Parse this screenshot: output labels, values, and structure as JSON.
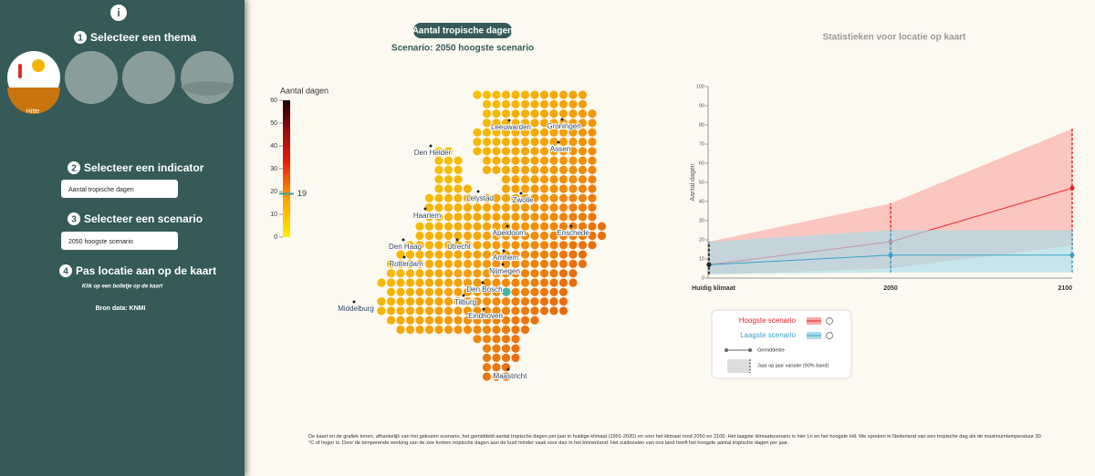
{
  "sidebar": {
    "info": "i",
    "step1_num": "1",
    "step1": "Selecteer een thema",
    "theme_label": "Hitte",
    "step2_num": "2",
    "step2": "Selecteer een indicator",
    "indicator": "Aantal tropische dagen",
    "step3_num": "3",
    "step3": "Selecteer een scenario",
    "scenario": "2050 hoogste scenario",
    "step4_num": "4",
    "step4": "Pas locatie aan op de kaart",
    "hint": "Klik op een bolletje op de kaart",
    "source": "Bron data: KNMI"
  },
  "map": {
    "title": "Aantal tropische dagen",
    "subtitle": "Scenario: 2050 hoogste scenario",
    "legend_title": "Aantal dagen",
    "legend_lim": [
      0,
      60
    ],
    "legend_ticks": [
      0,
      10,
      20,
      30,
      40,
      50,
      60
    ],
    "selected_value": 19,
    "cities": [
      "Leeuwarden",
      "Groningen",
      "Assen",
      "Den Helder",
      "Lelystad",
      "Zwolle",
      "Haarlem",
      "Apeldoorn",
      "Enschede",
      "Den Haag",
      "Utrecht",
      "Rotterdam",
      "Arnhem",
      "Nijmegen",
      "Den Bosch",
      "Tilburg",
      "Eindhoven",
      "Middelburg",
      "Maastricht"
    ]
  },
  "chart_data": {
    "type": "line",
    "title": "Statistieken voor locatie op kaart",
    "y_label": "Aantal dagen",
    "categories": [
      "Huidig klimaat",
      "2050",
      "2100"
    ],
    "ylim": [
      0,
      100
    ],
    "yticks": [
      0,
      10,
      20,
      30,
      40,
      50,
      60,
      70,
      80,
      90,
      100
    ],
    "series": [
      {
        "name": "Hoogste scenario",
        "color": "#e8202a",
        "band_color": "#f9aaa5",
        "values": [
          7,
          19,
          47
        ],
        "band_low": [
          2,
          5,
          17
        ],
        "band_high": [
          19,
          39,
          78
        ]
      },
      {
        "name": "Laagste scenario",
        "color": "#3aa0c8",
        "band_color": "#a9dbe8",
        "values": [
          7,
          12,
          12
        ],
        "band_low": [
          2,
          3,
          3
        ],
        "band_high": [
          19,
          25,
          25
        ]
      }
    ],
    "legend_mean": "Gemiddelde",
    "legend_band": "Jaar op jaar variatie (90% band)"
  },
  "footnote": "De kaart en de grafiek tonen, afhankelijk van het gekozen scenario, het gemiddeld aantal tropische dagen per jaar in huidige klimaat (1991-2020) en voor het klimaat rond 2050 en 2100. Het laagste klimaatscenario is hier Ln en het hoogste Hd. We spreken in Nederland van een tropische dag als de maximumtemperatuur 30 °C of hoger is. Door de temperende werking van de zee komen tropische dagen aan de kust minder vaak voor dan in het binnenland. Het zuidoosten van ons land heeft het hoogste aantal tropische dagen per jaar."
}
